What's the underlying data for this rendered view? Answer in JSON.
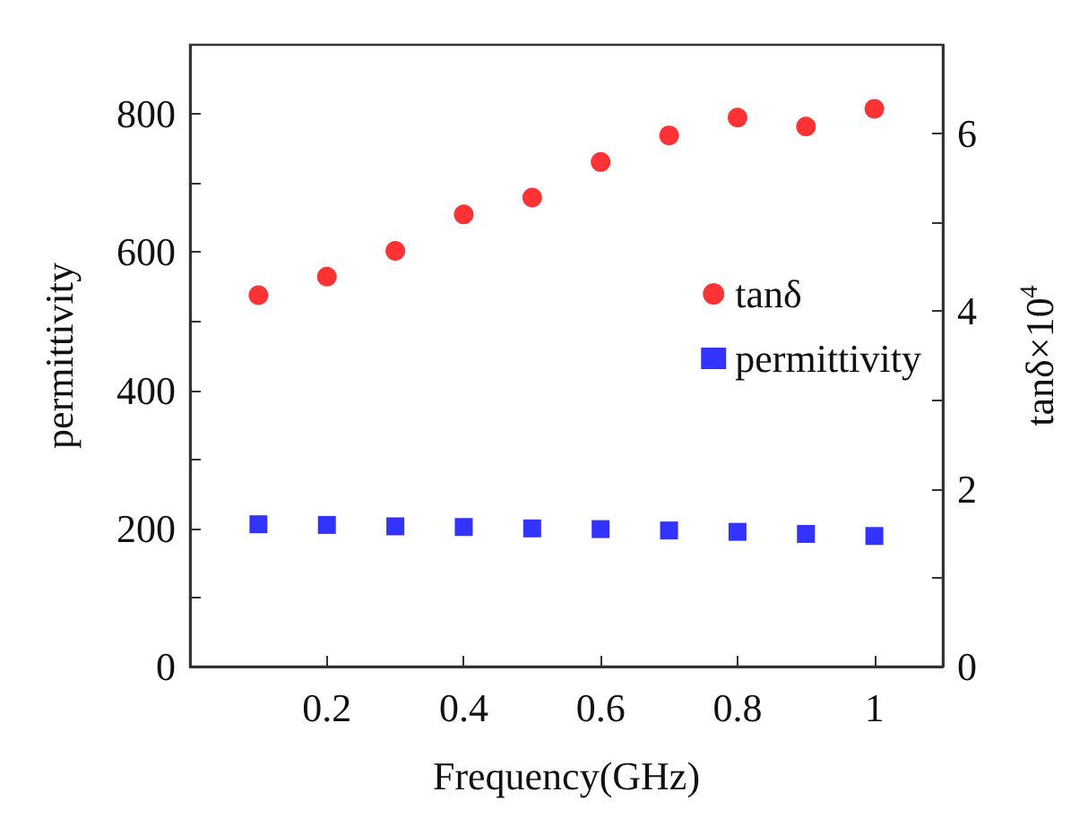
{
  "chart_data": {
    "type": "scatter",
    "xlabel": "Frequency(GHz)",
    "ylabel": "permittivity",
    "y2label": "tanδ×10$^{4}$",
    "x": [
      0.1,
      0.2,
      0.3,
      0.4,
      0.5,
      0.6,
      0.7,
      0.8,
      0.9,
      1.0
    ],
    "xlim": [
      0,
      1.1
    ],
    "xticks": [
      0.2,
      0.4,
      0.6,
      0.8,
      {
        "value": 1,
        "label": "1"
      }
    ],
    "ylim": [
      0,
      900
    ],
    "yticks": [
      0,
      {
        "value": 100,
        "label": null
      },
      200,
      {
        "value": 300,
        "label": null
      },
      400,
      {
        "value": 500,
        "label": null
      },
      600,
      {
        "value": 700,
        "label": null
      },
      800
    ],
    "y2lim": [
      0,
      7
    ],
    "y2ticks": [
      0,
      {
        "value": 1,
        "label": null
      },
      2,
      {
        "value": 3,
        "label": null
      },
      4,
      {
        "value": 5,
        "label": null
      },
      6
    ],
    "series": [
      {
        "name": "tanδ",
        "color": "#ff0000",
        "marker": "circle",
        "axis": "y2",
        "values": [
          4.18,
          4.39,
          4.68,
          5.09,
          5.28,
          5.68,
          5.98,
          6.18,
          6.08,
          6.28
        ]
      },
      {
        "name": "permittivity",
        "color": "#0000ff",
        "marker": "square",
        "values": [
          206,
          205,
          203,
          202,
          200,
          199,
          197,
          195,
          192,
          189
        ]
      }
    ],
    "grid": false,
    "legend": "right"
  }
}
